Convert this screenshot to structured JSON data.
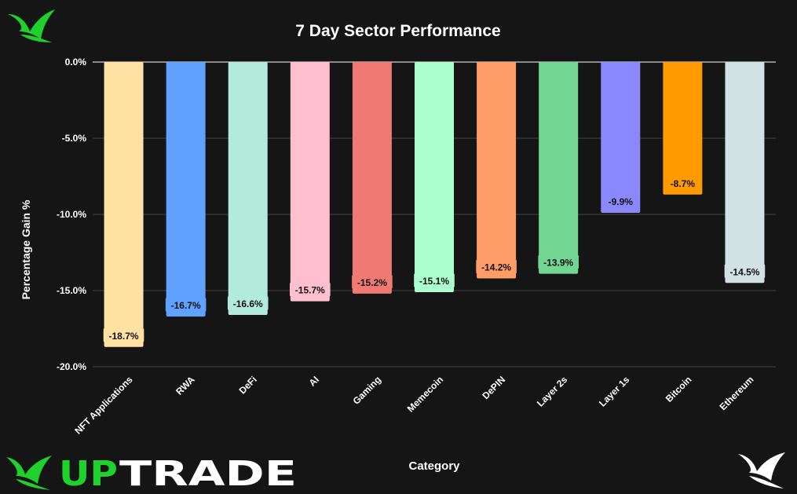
{
  "brand": {
    "logo_word_part1": "UP",
    "logo_word_part2": "TRADE",
    "brand_green": "#1fd12c",
    "top_left_icon": "bird-logo-icon",
    "bottom_right_icon": "bird-logo-icon"
  },
  "chart_data": {
    "type": "bar",
    "title": "7 Day Sector Performance",
    "xlabel": "Category",
    "ylabel": "Percentage Gain %",
    "ylim": [
      -20,
      0
    ],
    "yticks": [
      0,
      -5,
      -10,
      -15,
      -20
    ],
    "ytick_labels": [
      "0.0%",
      "-5.0%",
      "-10.0%",
      "-15.0%",
      "-20.0%"
    ],
    "grid": true,
    "legend": "none",
    "categories": [
      "NFT Applications",
      "RWA",
      "DeFi",
      "AI",
      "Gaming",
      "Memecoin",
      "DePIN",
      "Layer 2s",
      "Layer 1s",
      "Bitcoin",
      "Ethereum"
    ],
    "values": [
      -18.7,
      -16.7,
      -16.6,
      -15.7,
      -15.2,
      -15.1,
      -14.2,
      -13.9,
      -9.9,
      -8.7,
      -14.5
    ],
    "value_labels": [
      "-18.7%",
      "-16.7%",
      "-16.6%",
      "-15.7%",
      "-15.2%",
      "-15.1%",
      "-14.2%",
      "-13.9%",
      "-9.9%",
      "-8.7%",
      "-14.5%"
    ],
    "colors": [
      "#fee1a3",
      "#60a0ff",
      "#b2eadc",
      "#ffbfcd",
      "#ef7a74",
      "#aaffcc",
      "#ff9d68",
      "#72d592",
      "#8b88fd",
      "#ff9a00",
      "#d1e1e4"
    ]
  }
}
